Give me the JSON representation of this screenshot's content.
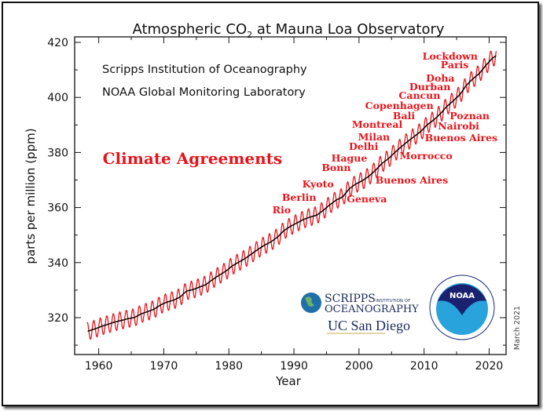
{
  "chart_data": {
    "type": "line",
    "title": "Atmospheric CO",
    "title_sub": "2",
    "title_rest": " at Mauna Loa Observatory",
    "credits": [
      "Scripps Institution of Oceanography",
      "NOAA Global Monitoring Laboratory"
    ],
    "xlabel": "Year",
    "ylabel": "parts per million (ppm)",
    "date_note": "March 2021",
    "xlim": [
      1956.3,
      2022.6
    ],
    "ylim": [
      306.6,
      422
    ],
    "x_ticks": [
      1960,
      1970,
      1980,
      1990,
      2000,
      2010,
      2020
    ],
    "y_ticks": [
      320,
      340,
      360,
      380,
      400,
      420
    ],
    "grid": false,
    "seasonal_amplitude_ppm": 3.2,
    "colors": {
      "monthly": "#e8141b",
      "trend": "#000000",
      "annotation": "#e8141b"
    },
    "series": [
      {
        "type": "annual-trend",
        "x": [
          1958,
          1959,
          1960,
          1961,
          1962,
          1963,
          1964,
          1965,
          1966,
          1967,
          1968,
          1969,
          1970,
          1971,
          1972,
          1973,
          1974,
          1975,
          1976,
          1977,
          1978,
          1979,
          1980,
          1981,
          1982,
          1983,
          1984,
          1985,
          1986,
          1987,
          1988,
          1989,
          1990,
          1991,
          1992,
          1993,
          1994,
          1995,
          1996,
          1997,
          1998,
          1999,
          2000,
          2001,
          2002,
          2003,
          2004,
          2005,
          2006,
          2007,
          2008,
          2009,
          2010,
          2011,
          2012,
          2013,
          2014,
          2015,
          2016,
          2017,
          2018,
          2019,
          2020,
          2021
        ],
        "y": [
          315.2,
          315.98,
          316.91,
          317.64,
          318.45,
          318.99,
          319.62,
          320.04,
          321.37,
          322.18,
          323.05,
          324.62,
          325.68,
          326.32,
          327.46,
          329.68,
          330.19,
          331.12,
          332.03,
          333.84,
          335.41,
          336.84,
          338.76,
          340.12,
          341.48,
          343.15,
          344.85,
          346.35,
          347.61,
          349.31,
          351.69,
          353.2,
          354.45,
          355.7,
          356.54,
          357.21,
          358.96,
          360.97,
          362.74,
          363.88,
          366.84,
          368.54,
          369.71,
          371.32,
          373.45,
          375.98,
          377.7,
          379.98,
          382.09,
          384.02,
          385.83,
          387.64,
          390.1,
          391.85,
          394.06,
          396.74,
          398.81,
          401.01,
          404.41,
          406.76,
          408.72,
          411.66,
          414.24,
          415.9
        ]
      }
    ],
    "heading_annotation": {
      "text": "Climate Agreements",
      "x": 1974.4,
      "y": 377.8
    },
    "annotations": [
      {
        "text": "Lockdown",
        "x": 2014.0,
        "y": 414.9
      },
      {
        "text": "Paris",
        "x": 2014.7,
        "y": 411.7
      },
      {
        "text": "Doha",
        "x": 2012.5,
        "y": 406.9
      },
      {
        "text": "Durban",
        "x": 2010.9,
        "y": 403.8
      },
      {
        "text": "Cancun",
        "x": 2009.3,
        "y": 400.6
      },
      {
        "text": "Copenhagen",
        "x": 2006.2,
        "y": 396.9
      },
      {
        "text": "Bali",
        "x": 2006.9,
        "y": 393.2
      },
      {
        "text": "Poznan",
        "x": 2017.0,
        "y": 393.2
      },
      {
        "text": "Montreal",
        "x": 2002.8,
        "y": 390.1
      },
      {
        "text": "Nairobi",
        "x": 2015.3,
        "y": 389.5
      },
      {
        "text": "Milan",
        "x": 2002.3,
        "y": 385.5
      },
      {
        "text": "Buenos Aires",
        "x": 2015.7,
        "y": 385.2
      },
      {
        "text": "Delhi",
        "x": 2000.7,
        "y": 382.1
      },
      {
        "text": "Hague",
        "x": 1998.5,
        "y": 377.8
      },
      {
        "text": "Morrocco",
        "x": 2010.3,
        "y": 378.7
      },
      {
        "text": "Bonn",
        "x": 1996.5,
        "y": 374.4
      },
      {
        "text": "Buenos Aires",
        "x": 2008.1,
        "y": 369.9
      },
      {
        "text": "Kyoto",
        "x": 1993.7,
        "y": 368.4
      },
      {
        "text": "Berlin",
        "x": 1990.8,
        "y": 363.6
      },
      {
        "text": "Geneva",
        "x": 2001.2,
        "y": 363.0
      },
      {
        "text": "Rio",
        "x": 1988.1,
        "y": 359.0
      }
    ]
  },
  "logos": {
    "scripps": {
      "line1": "SCRIPPS",
      "line1b": "INSTITUTION OF",
      "line2": "OCEANOGRAPHY",
      "line3": "UC San Diego"
    },
    "noaa": {
      "center": "NOAA",
      "ring_top": "NATIONAL OCEANIC AND ATMOSPHERIC ADMINISTRATION",
      "ring_bottom": "U.S. DEPARTMENT OF COMMERCE"
    }
  }
}
